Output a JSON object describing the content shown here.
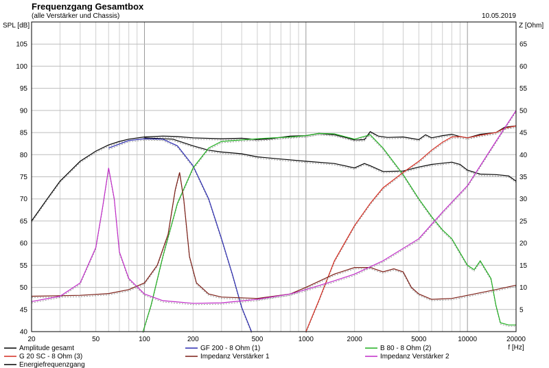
{
  "chart_data": {
    "type": "line",
    "title": "Frequenzgang Gesamtbox",
    "subtitle": "(alle Verstärker und Chassis)",
    "date": "10.05.2019",
    "ylabel_left": "SPL [dB]",
    "ylabel_right": "Z [Ohm]",
    "xlabel": "f [Hz]",
    "x_scale": "log",
    "xlim": [
      20,
      20000
    ],
    "ylim_left": [
      40,
      110
    ],
    "ylim_right": [
      0,
      70
    ],
    "grid": true,
    "x_ticks": [
      {
        "v": 20,
        "label": "20"
      },
      {
        "v": 50,
        "label": "50"
      },
      {
        "v": 100,
        "label": "100"
      },
      {
        "v": 200,
        "label": "200"
      },
      {
        "v": 500,
        "label": "500"
      },
      {
        "v": 1000,
        "label": "1000"
      },
      {
        "v": 2000,
        "label": "2000"
      },
      {
        "v": 5000,
        "label": "5000"
      },
      {
        "v": 10000,
        "label": "10000"
      },
      {
        "v": 20000,
        "label": "20000"
      }
    ],
    "y_ticks_left": [
      {
        "v": 40,
        "label": "40"
      },
      {
        "v": 45,
        "label": "45"
      },
      {
        "v": 50,
        "label": "50"
      },
      {
        "v": 55,
        "label": "55"
      },
      {
        "v": 60,
        "label": "60"
      },
      {
        "v": 65,
        "label": "65"
      },
      {
        "v": 70,
        "label": "70"
      },
      {
        "v": 75,
        "label": "75"
      },
      {
        "v": 80,
        "label": "80"
      },
      {
        "v": 85,
        "label": "85"
      },
      {
        "v": 90,
        "label": "90"
      },
      {
        "v": 95,
        "label": "95"
      },
      {
        "v": 100,
        "label": "100"
      },
      {
        "v": 105,
        "label": "105"
      }
    ],
    "y_ticks_right": [
      {
        "v": 5,
        "label": "5"
      },
      {
        "v": 10,
        "label": "10"
      },
      {
        "v": 15,
        "label": "15"
      },
      {
        "v": 20,
        "label": "20"
      },
      {
        "v": 25,
        "label": "25"
      },
      {
        "v": 30,
        "label": "30"
      },
      {
        "v": 35,
        "label": "35"
      },
      {
        "v": 40,
        "label": "40"
      },
      {
        "v": 45,
        "label": "45"
      },
      {
        "v": 50,
        "label": "50"
      },
      {
        "v": 55,
        "label": "55"
      },
      {
        "v": 60,
        "label": "60"
      },
      {
        "v": 65,
        "label": "65"
      }
    ],
    "series": [
      {
        "name": "Amplitude gesamt",
        "color": "#000000",
        "style": "solid",
        "axis": "left",
        "points": [
          [
            20,
            65
          ],
          [
            25,
            70
          ],
          [
            30,
            74
          ],
          [
            40,
            78.5
          ],
          [
            50,
            80.8
          ],
          [
            60,
            82.2
          ],
          [
            70,
            83
          ],
          [
            80,
            83.5
          ],
          [
            100,
            84
          ],
          [
            130,
            84.2
          ],
          [
            160,
            84.1
          ],
          [
            200,
            83.8
          ],
          [
            300,
            83.6
          ],
          [
            400,
            83.7
          ],
          [
            500,
            83.4
          ],
          [
            600,
            83.6
          ],
          [
            800,
            84.2
          ],
          [
            1000,
            84.3
          ],
          [
            1200,
            84.8
          ],
          [
            1500,
            84.5
          ],
          [
            1800,
            83.8
          ],
          [
            2000,
            83.3
          ],
          [
            2300,
            83.4
          ],
          [
            2500,
            85.2
          ],
          [
            2800,
            84.2
          ],
          [
            3200,
            83.9
          ],
          [
            4000,
            84
          ],
          [
            5000,
            83.4
          ],
          [
            5500,
            84.5
          ],
          [
            6000,
            83.8
          ],
          [
            7000,
            84.3
          ],
          [
            8000,
            84.6
          ],
          [
            9000,
            84.1
          ],
          [
            10000,
            83.8
          ],
          [
            12000,
            84.6
          ],
          [
            15000,
            85
          ],
          [
            17000,
            86.2
          ],
          [
            20000,
            86.5
          ]
        ]
      },
      {
        "name": "Energiefrequenzgang",
        "color": "#000000",
        "style": "solid",
        "axis": "left",
        "points": [
          [
            100,
            83.8
          ],
          [
            150,
            83.5
          ],
          [
            200,
            82
          ],
          [
            250,
            81
          ],
          [
            300,
            80.6
          ],
          [
            400,
            80.2
          ],
          [
            500,
            79.5
          ],
          [
            700,
            79
          ],
          [
            1000,
            78.5
          ],
          [
            1500,
            78
          ],
          [
            2000,
            77
          ],
          [
            2300,
            78
          ],
          [
            2500,
            77.5
          ],
          [
            3000,
            76.2
          ],
          [
            4000,
            76.3
          ],
          [
            5000,
            77.2
          ],
          [
            6000,
            77.8
          ],
          [
            8000,
            78.3
          ],
          [
            9000,
            77.8
          ],
          [
            10000,
            76.5
          ],
          [
            12000,
            75.6
          ],
          [
            15000,
            75.5
          ],
          [
            18000,
            75.2
          ],
          [
            20000,
            74
          ]
        ]
      },
      {
        "name": "GF 200 - 8 Ohm (1)",
        "color": "#2a2ab0",
        "style": "solid",
        "axis": "left",
        "points": [
          [
            60,
            81.5
          ],
          [
            80,
            83.2
          ],
          [
            100,
            83.6
          ],
          [
            130,
            83.5
          ],
          [
            160,
            82
          ],
          [
            200,
            77.5
          ],
          [
            250,
            70
          ],
          [
            300,
            61
          ],
          [
            350,
            53
          ],
          [
            400,
            45.5
          ],
          [
            460,
            40
          ]
        ]
      },
      {
        "name": "B 80 - 8 Ohm (2)",
        "color": "#1fae1f",
        "style": "solid",
        "axis": "left",
        "points": [
          [
            98,
            40
          ],
          [
            110,
            46
          ],
          [
            130,
            57
          ],
          [
            160,
            69
          ],
          [
            200,
            77
          ],
          [
            250,
            81.5
          ],
          [
            300,
            83
          ],
          [
            500,
            83.6
          ],
          [
            800,
            84
          ],
          [
            1000,
            84.3
          ],
          [
            1200,
            84.8
          ],
          [
            1500,
            84.7
          ],
          [
            2000,
            83.5
          ],
          [
            2500,
            84.5
          ],
          [
            3000,
            81.5
          ],
          [
            4000,
            75.5
          ],
          [
            5000,
            70
          ],
          [
            6000,
            66
          ],
          [
            7000,
            63
          ],
          [
            8000,
            61
          ],
          [
            10000,
            55
          ],
          [
            11000,
            54
          ],
          [
            12000,
            56
          ],
          [
            14000,
            52
          ],
          [
            15000,
            46
          ],
          [
            16000,
            42
          ],
          [
            18000,
            41.5
          ],
          [
            20000,
            41.5
          ]
        ]
      },
      {
        "name": "G 20 SC - 8 Ohm (3)",
        "color": "#d42a1e",
        "style": "solid",
        "axis": "left",
        "points": [
          [
            1000,
            40
          ],
          [
            1200,
            47
          ],
          [
            1500,
            56
          ],
          [
            2000,
            64
          ],
          [
            2500,
            69
          ],
          [
            3000,
            72.5
          ],
          [
            4000,
            76
          ],
          [
            5000,
            78.5
          ],
          [
            6000,
            81
          ],
          [
            7000,
            82.8
          ],
          [
            8000,
            84
          ],
          [
            9000,
            84.1
          ],
          [
            10000,
            83.8
          ],
          [
            12000,
            84.4
          ],
          [
            15000,
            85
          ],
          [
            17000,
            86
          ],
          [
            20000,
            86.5
          ]
        ]
      },
      {
        "name": "Impedanz Verstärker 1",
        "color": "#7a1c14",
        "style": "solid",
        "axis": "right",
        "points": [
          [
            20,
            8
          ],
          [
            40,
            8.2
          ],
          [
            60,
            8.6
          ],
          [
            80,
            9.5
          ],
          [
            100,
            11
          ],
          [
            120,
            15
          ],
          [
            140,
            22
          ],
          [
            155,
            32
          ],
          [
            165,
            36
          ],
          [
            175,
            30
          ],
          [
            190,
            17
          ],
          [
            210,
            11
          ],
          [
            250,
            8.5
          ],
          [
            300,
            7.8
          ],
          [
            500,
            7.5
          ],
          [
            800,
            8.5
          ],
          [
            1000,
            10
          ],
          [
            1500,
            13
          ],
          [
            2000,
            14.5
          ],
          [
            2500,
            14.5
          ],
          [
            3000,
            13.5
          ],
          [
            3500,
            14.2
          ],
          [
            4000,
            13.5
          ],
          [
            4500,
            10
          ],
          [
            5000,
            8.5
          ],
          [
            6000,
            7.3
          ],
          [
            8000,
            7.5
          ],
          [
            10000,
            8.2
          ],
          [
            15000,
            9.5
          ],
          [
            20000,
            10.5
          ]
        ]
      },
      {
        "name": "Impedanz Verstärker 2",
        "color": "#c02ac8",
        "style": "solid",
        "axis": "right",
        "points": [
          [
            20,
            6.8
          ],
          [
            30,
            8
          ],
          [
            40,
            11
          ],
          [
            50,
            19
          ],
          [
            55,
            28
          ],
          [
            60,
            37
          ],
          [
            65,
            30
          ],
          [
            70,
            18
          ],
          [
            80,
            12
          ],
          [
            100,
            8.5
          ],
          [
            130,
            7
          ],
          [
            200,
            6.4
          ],
          [
            300,
            6.5
          ],
          [
            500,
            7.3
          ],
          [
            800,
            8.5
          ],
          [
            1000,
            9.5
          ],
          [
            1500,
            11.5
          ],
          [
            2000,
            13
          ],
          [
            3000,
            16
          ],
          [
            5000,
            21
          ],
          [
            7000,
            27
          ],
          [
            10000,
            33
          ],
          [
            15000,
            43
          ],
          [
            20000,
            50
          ]
        ]
      }
    ],
    "legend": [
      {
        "label": "Amplitude gesamt",
        "color": "#000000"
      },
      {
        "label": "GF 200 - 8 Ohm (1)",
        "color": "#2a2ab0"
      },
      {
        "label": "B 80 - 8 Ohm (2)",
        "color": "#1fae1f"
      },
      {
        "label": "G 20 SC - 8 Ohm (3)",
        "color": "#d42a1e"
      },
      {
        "label": "Impedanz Verstärker 1",
        "color": "#7a1c14"
      },
      {
        "label": "Impedanz Verstärker 2",
        "color": "#c02ac8"
      },
      {
        "label": "Energiefrequenzgang",
        "color": "#000000"
      }
    ]
  }
}
